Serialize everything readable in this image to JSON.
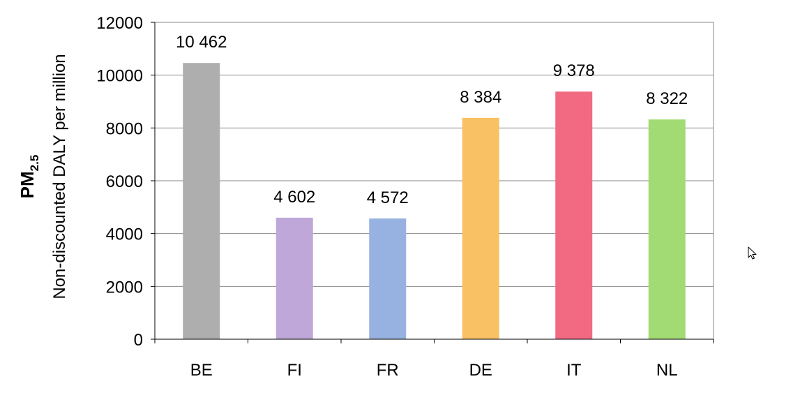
{
  "chart_data": {
    "type": "bar",
    "title": "",
    "ylabel_main": "PM",
    "ylabel_subscript": "2.5",
    "ylabel_secondary": "Non-discounted DALY per million",
    "xlabel": "",
    "categories": [
      "BE",
      "FI",
      "FR",
      "DE",
      "IT",
      "NL"
    ],
    "values": [
      10462,
      4602,
      4572,
      8384,
      9378,
      8322
    ],
    "value_labels": [
      "10 462",
      "4 602",
      "4 572",
      "8 384",
      "9 378",
      "8 322"
    ],
    "bar_colors": [
      "#AEAEAE",
      "#C0A7DA",
      "#97B2E0",
      "#F9C163",
      "#F26A82",
      "#A2DB74"
    ],
    "ylim": [
      0,
      12000
    ],
    "yticks": [
      0,
      2000,
      4000,
      6000,
      8000,
      10000,
      12000
    ],
    "ytick_labels": [
      "0",
      "2000",
      "4000",
      "6000",
      "8000",
      "10000",
      "12000"
    ],
    "grid": true,
    "legend": "none"
  },
  "cursor": {
    "icon": "mouse-pointer-icon"
  }
}
